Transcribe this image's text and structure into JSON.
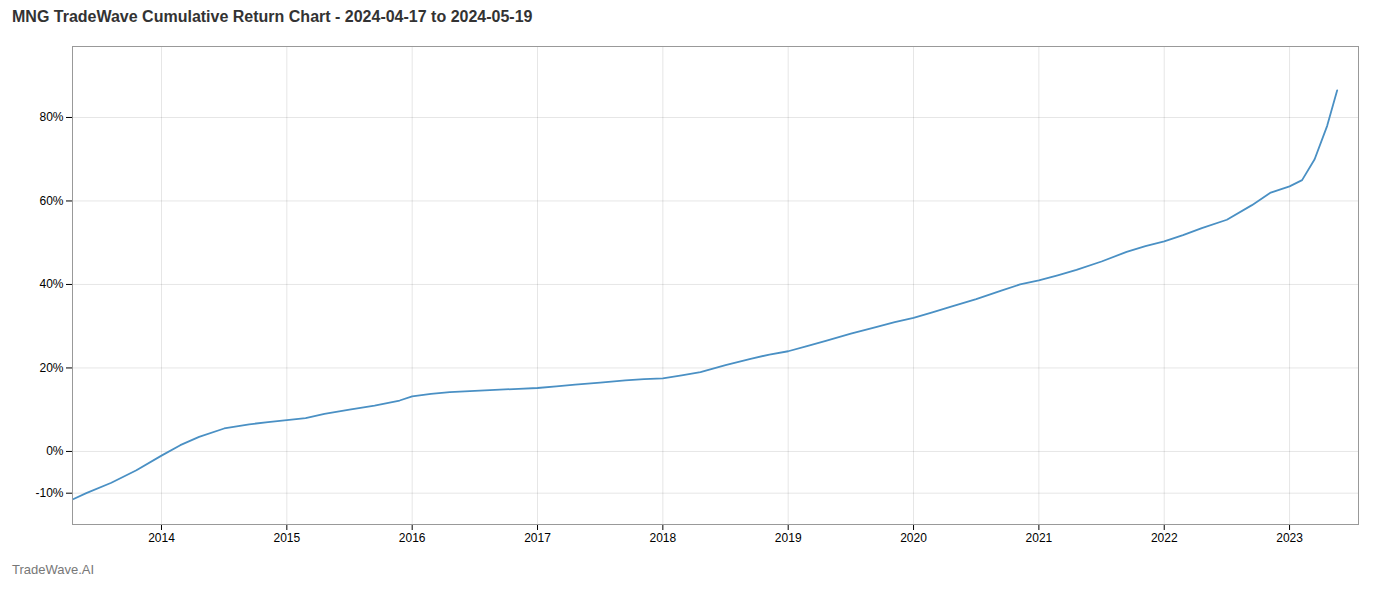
{
  "chart_data": {
    "type": "line",
    "title": "MNG TradeWave Cumulative Return Chart - 2024-04-17 to 2024-05-19",
    "annotations": [
      "TradeWave.AI"
    ],
    "color": "#4a90c4",
    "grid": true,
    "xlim": [
      2013.29,
      2023.55
    ],
    "ylim": [
      -0.175,
      0.97
    ],
    "xticks": [
      2014,
      2015,
      2016,
      2017,
      2018,
      2019,
      2020,
      2021,
      2022,
      2023
    ],
    "yticks": [
      {
        "value": -0.1,
        "label": "-10%"
      },
      {
        "value": 0.0,
        "label": "0%"
      },
      {
        "value": 0.2,
        "label": "20%"
      },
      {
        "value": 0.4,
        "label": "40%"
      },
      {
        "value": 0.6,
        "label": "60%"
      },
      {
        "value": 0.8,
        "label": "80%"
      }
    ],
    "x": [
      2013.29,
      2013.4,
      2013.6,
      2013.8,
      2014.0,
      2014.15,
      2014.3,
      2014.5,
      2014.7,
      2014.85,
      2015.0,
      2015.15,
      2015.3,
      2015.5,
      2015.7,
      2015.9,
      2016.0,
      2016.15,
      2016.3,
      2016.5,
      2016.7,
      2016.85,
      2017.0,
      2017.15,
      2017.3,
      2017.5,
      2017.7,
      2017.85,
      2018.0,
      2018.15,
      2018.3,
      2018.5,
      2018.7,
      2018.85,
      2019.0,
      2019.15,
      2019.3,
      2019.5,
      2019.7,
      2019.85,
      2020.0,
      2020.15,
      2020.3,
      2020.5,
      2020.7,
      2020.85,
      2021.0,
      2021.15,
      2021.3,
      2021.5,
      2021.7,
      2021.85,
      2022.0,
      2022.15,
      2022.3,
      2022.5,
      2022.7,
      2022.85,
      2023.0,
      2023.1,
      2023.2,
      2023.3,
      2023.38
    ],
    "values": [
      -0.115,
      -0.1,
      -0.075,
      -0.045,
      -0.01,
      0.015,
      0.035,
      0.055,
      0.065,
      0.07,
      0.075,
      0.08,
      0.09,
      0.1,
      0.11,
      0.122,
      0.132,
      0.138,
      0.142,
      0.145,
      0.148,
      0.15,
      0.152,
      0.156,
      0.16,
      0.165,
      0.17,
      0.173,
      0.175,
      0.182,
      0.19,
      0.207,
      0.222,
      0.232,
      0.24,
      0.252,
      0.265,
      0.282,
      0.298,
      0.31,
      0.32,
      0.333,
      0.347,
      0.365,
      0.385,
      0.4,
      0.41,
      0.422,
      0.435,
      0.455,
      0.478,
      0.492,
      0.503,
      0.518,
      0.535,
      0.555,
      0.59,
      0.62,
      0.635,
      0.65,
      0.7,
      0.78,
      0.865
    ]
  }
}
